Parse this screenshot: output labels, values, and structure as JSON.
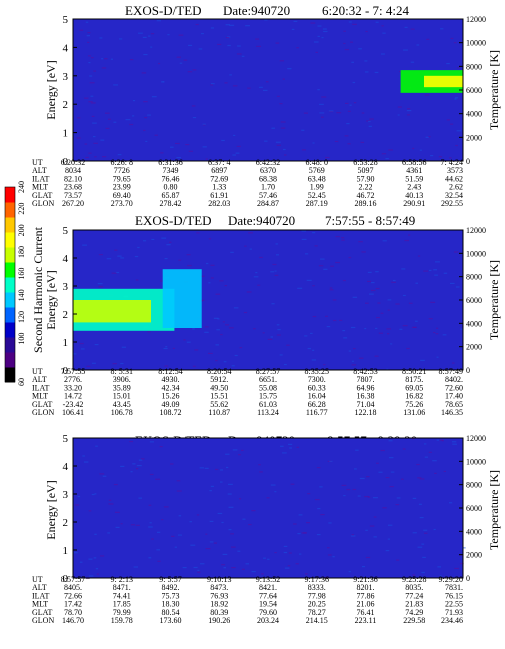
{
  "colors": {
    "background": "#2626c8",
    "colorbar": [
      "#000000",
      "#4d0082",
      "#2a0a96",
      "#0000c8",
      "#0064ff",
      "#00c8ff",
      "#00ffc8",
      "#00ff00",
      "#c8ff00",
      "#ffff00",
      "#ffc800",
      "#ff6400",
      "#ff0000"
    ]
  },
  "colorbar": {
    "label": "Second Harmonic Current",
    "ticks": [
      "60",
      "100",
      "120",
      "140",
      "160",
      "180",
      "200",
      "220",
      "240"
    ]
  },
  "chart_data": [
    {
      "type": "heatmap",
      "title": "EXOS-D/TED",
      "date": "Date:940720",
      "time_range": "6:20:32 - 7: 4:24",
      "ylabel": "Energy [eV]",
      "ylabel_right": "Temperature [K]",
      "ylim": [
        0,
        5
      ],
      "ylim_right": [
        0,
        12000
      ],
      "yticks": [
        "0",
        "1",
        "2",
        "3",
        "4",
        "5"
      ],
      "yticks_right": [
        "0",
        "2000",
        "4000",
        "6000",
        "8000",
        "10000",
        "12000"
      ],
      "table": {
        "labels": [
          "UT",
          "ALT",
          "ILAT",
          "MLT",
          "GLAT",
          "GLON"
        ],
        "rows": [
          [
            "6:20:32",
            "6:26: 8",
            "6:31:36",
            "6:37: 4",
            "6:42:32",
            "6:48: 0",
            "6:53:28",
            "6:58:56",
            "7: 4:24"
          ],
          [
            "8034",
            "7726",
            "7349",
            "6897",
            "6370",
            "5769",
            "5097",
            "4361",
            "3573"
          ],
          [
            "82.10",
            "79.65",
            "76.46",
            "72.69",
            "68.38",
            "63.48",
            "57.90",
            "51.59",
            "44.62"
          ],
          [
            "23.68",
            "23.99",
            "0.80",
            "1.33",
            "1.70",
            "1.99",
            "2.22",
            "2.43",
            "2.62"
          ],
          [
            "73.57",
            "69.40",
            "65.87",
            "61.91",
            "57.46",
            "52.45",
            "46.72",
            "40.13",
            "32.54"
          ],
          [
            "267.20",
            "273.70",
            "278.42",
            "282.03",
            "284.87",
            "287.19",
            "289.16",
            "290.91",
            "292.55"
          ]
        ]
      },
      "features": [
        {
          "x0": 0.84,
          "x1": 1.0,
          "e0": 2.4,
          "e1": 3.2,
          "level": 0.55
        },
        {
          "x0": 0.9,
          "x1": 1.0,
          "e0": 2.6,
          "e1": 3.0,
          "level": 0.75
        }
      ]
    },
    {
      "type": "heatmap",
      "title": "EXOS-D/TED",
      "date": "Date:940720",
      "time_range": "7:57:55 - 8:57:49",
      "ylabel": "Energy [eV]",
      "ylabel_right": "Temperature [K]",
      "ylim": [
        0,
        5
      ],
      "ylim_right": [
        0,
        12000
      ],
      "yticks": [
        "0",
        "1",
        "2",
        "3",
        "4",
        "5"
      ],
      "yticks_right": [
        "0",
        "2000",
        "4000",
        "6000",
        "8000",
        "10000",
        "12000"
      ],
      "table": {
        "labels": [
          "UT",
          "ALT",
          "ILAT",
          "MLT",
          "GLAT",
          "GLON"
        ],
        "rows": [
          [
            "7:57:55",
            "8: 5:31",
            "8:12:54",
            "8:20:54",
            "8:27:57",
            "8:35:25",
            "8:42:53",
            "8:50:21",
            "8:57:49"
          ],
          [
            "2776.",
            "3906.",
            "4930.",
            "5912.",
            "6651.",
            "7300.",
            "7807.",
            "8175.",
            "8402."
          ],
          [
            "33.20",
            "35.89",
            "42.34",
            "49.50",
            "55.08",
            "60.33",
            "64.96",
            "69.05",
            "72.60"
          ],
          [
            "14.72",
            "15.01",
            "15.26",
            "15.51",
            "15.75",
            "16.04",
            "16.38",
            "16.82",
            "17.40"
          ],
          [
            "-23.42",
            "43.45",
            "49.09",
            "55.62",
            "61.03",
            "66.28",
            "71.04",
            "75.26",
            "78.65"
          ],
          [
            "106.41",
            "106.78",
            "108.72",
            "110.87",
            "113.24",
            "116.77",
            "122.18",
            "131.06",
            "146.35"
          ]
        ]
      },
      "features": [
        {
          "x0": 0.0,
          "x1": 0.26,
          "e0": 1.4,
          "e1": 2.9,
          "level": 0.5
        },
        {
          "x0": 0.0,
          "x1": 0.2,
          "e0": 1.7,
          "e1": 2.5,
          "level": 0.66
        },
        {
          "x0": 0.23,
          "x1": 0.33,
          "e0": 1.5,
          "e1": 3.6,
          "level": 0.45
        }
      ]
    },
    {
      "type": "heatmap",
      "title": "EXOS-D/TED",
      "date": "Date:940720",
      "time_range": "8:57:57 - 9:29:20",
      "ylabel": "Energy [eV]",
      "ylabel_right": "Temperature [K]",
      "ylim": [
        0,
        5
      ],
      "ylim_right": [
        0,
        12000
      ],
      "yticks": [
        "0",
        "1",
        "2",
        "3",
        "4",
        "5"
      ],
      "yticks_right": [
        "0",
        "2000",
        "4000",
        "6000",
        "8000",
        "10000",
        "12000"
      ],
      "table": {
        "labels": [
          "UT",
          "ALT",
          "ILAT",
          "MLT",
          "GLAT",
          "GLON"
        ],
        "rows": [
          [
            "8:57:57",
            "9: 2:13",
            "9: 5:57",
            "9:10:13",
            "9:13:52",
            "9:17:36",
            "9:21:36",
            "9:25:28",
            "9:29:20"
          ],
          [
            "8405.",
            "8471.",
            "8492.",
            "8473.",
            "8421.",
            "8333.",
            "8201.",
            "8035.",
            "7831."
          ],
          [
            "72.66",
            "74.41",
            "75.73",
            "76.93",
            "77.64",
            "77.98",
            "77.86",
            "77.24",
            "76.15"
          ],
          [
            "17.42",
            "17.85",
            "18.30",
            "18.92",
            "19.54",
            "20.25",
            "21.06",
            "21.83",
            "22.55"
          ],
          [
            "78.70",
            "79.99",
            "80.54",
            "80.39",
            "79.60",
            "78.27",
            "76.41",
            "74.29",
            "71.93"
          ],
          [
            "146.70",
            "159.78",
            "173.60",
            "190.26",
            "203.24",
            "214.15",
            "223.11",
            "229.58",
            "234.46"
          ]
        ]
      },
      "features": []
    }
  ]
}
